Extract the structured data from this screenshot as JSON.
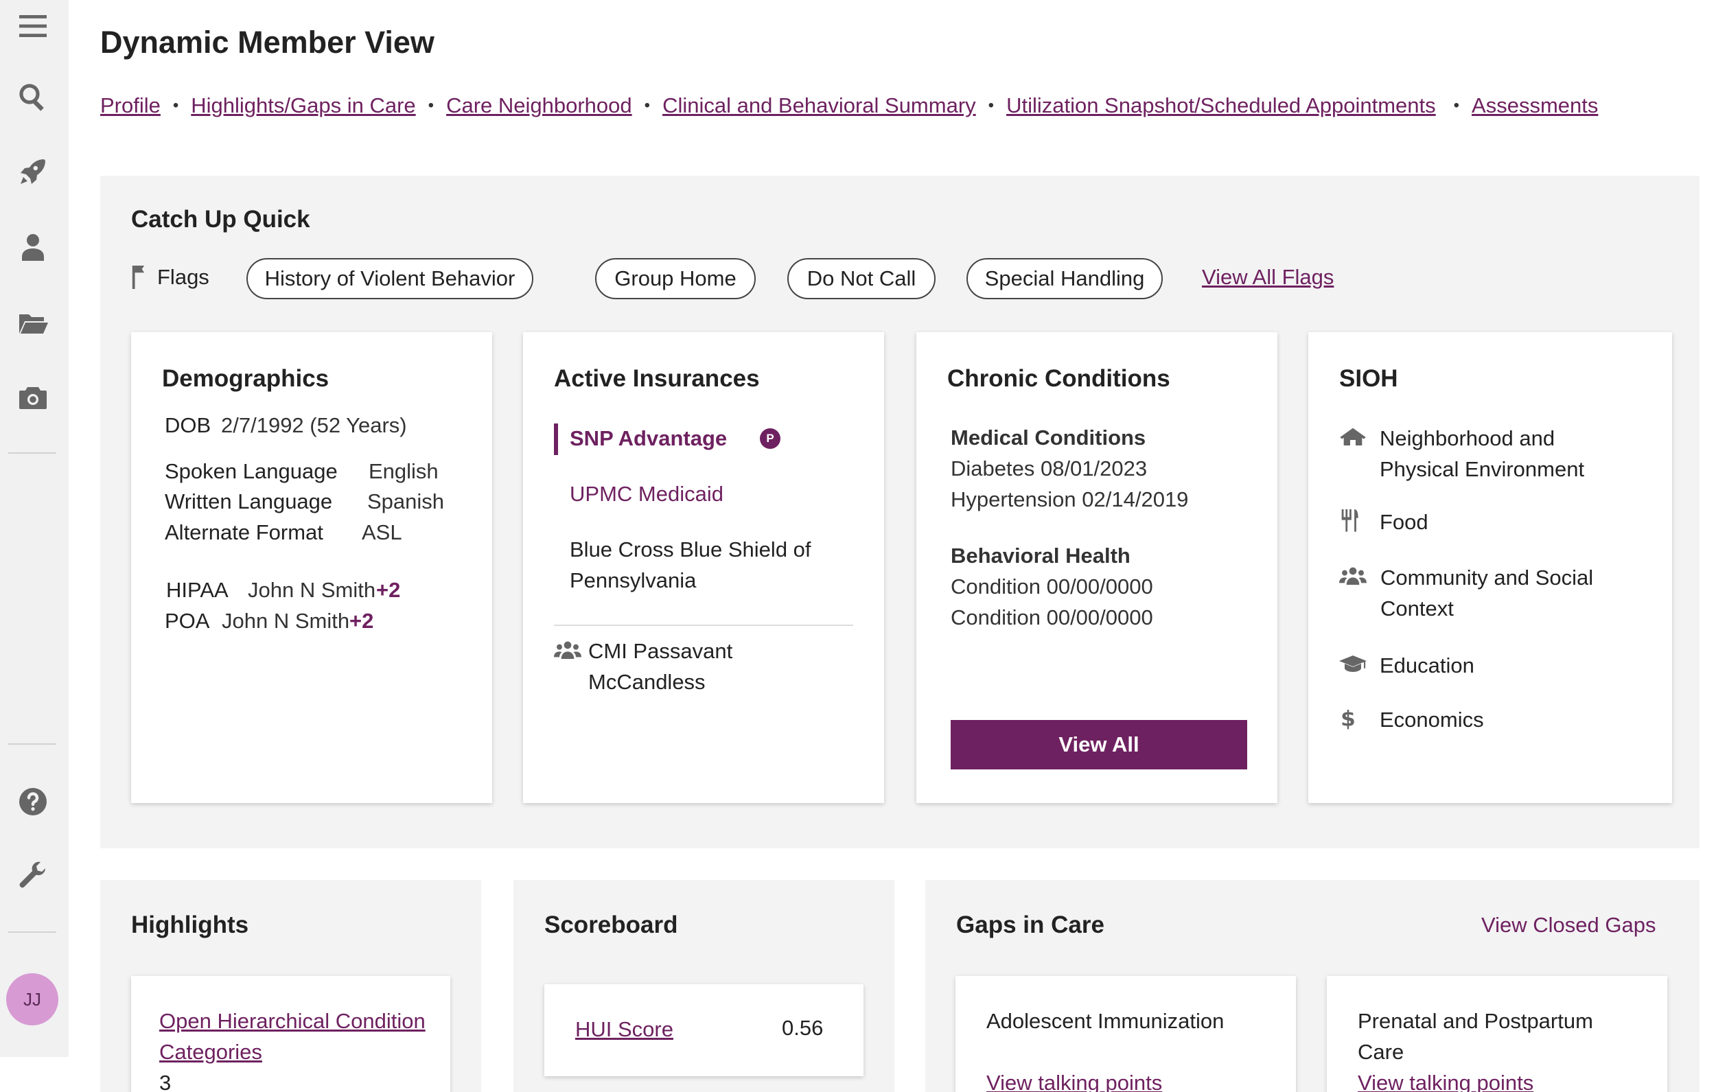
{
  "sidebar": {
    "avatar_initials": "JJ",
    "icons": [
      "menu-icon",
      "search-icon",
      "rocket-icon",
      "person-icon",
      "folder-icon",
      "camera-icon",
      "help-icon",
      "wrench-icon"
    ]
  },
  "header": {
    "title": "Dynamic Member View",
    "nav": [
      "Profile",
      "Highlights/Gaps in Care",
      "Care Neighborhood",
      "Clinical and Behavioral Summary",
      "Utilization Snapshot/Scheduled Appointments",
      "Assessments"
    ]
  },
  "catchup": {
    "title": "Catch Up Quick",
    "flags_label": "Flags",
    "flags": [
      "History of Violent Behavior",
      "Group Home",
      "Do Not Call",
      "Special Handling"
    ],
    "view_all_flags": "View All Flags"
  },
  "demographics": {
    "title": "Demographics",
    "dob_label": "DOB",
    "dob_value": "2/7/1992 (52 Years)",
    "spoken_label": "Spoken Language",
    "spoken_value": "English",
    "written_label": "Written Language",
    "written_value": "Spanish",
    "alt_label": "Alternate Format",
    "alt_value": "ASL",
    "hipaa_label": "HIPAA",
    "hipaa_value": "John N Smith",
    "hipaa_more": "+2",
    "poa_label": "POA",
    "poa_value": "John N Smith",
    "poa_more": "+2"
  },
  "insurances": {
    "title": "Active Insurances",
    "primary": "SNP Advantage",
    "primary_badge": "P",
    "secondary": "UPMC Medicaid",
    "third_line1": "Blue Cross Blue Shield of",
    "third_line2": "Pennsylvania",
    "group_line1": "CMI Passavant",
    "group_line2": "McCandless"
  },
  "chronic": {
    "title": "Chronic Conditions",
    "medical_heading": "Medical Conditions",
    "medical": [
      "Diabetes 08/01/2023",
      "Hypertension 02/14/2019"
    ],
    "behavioral_heading": "Behavioral Health",
    "behavioral": [
      "Condition 00/00/0000",
      "Condition 00/00/0000"
    ],
    "view_all": "View All"
  },
  "sioh": {
    "title": "SIOH",
    "items": [
      {
        "line1": "Neighborhood and",
        "line2": "Physical Environment",
        "icon": "house-icon"
      },
      {
        "line1": "Food",
        "line2": "",
        "icon": "utensils-icon"
      },
      {
        "line1": "Community and Social",
        "line2": "Context",
        "icon": "group-icon"
      },
      {
        "line1": "Education",
        "line2": "",
        "icon": "graduation-cap-icon"
      },
      {
        "line1": "Economics",
        "line2": "",
        "icon": "dollar-icon"
      }
    ]
  },
  "highlights": {
    "title": "Highlights",
    "item_line1": "Open Hierarchical Condition",
    "item_line2": "Categories",
    "item_value": "3"
  },
  "scoreboard": {
    "title": "Scoreboard",
    "hui_label": "HUI Score",
    "hui_value": "0.56"
  },
  "gaps": {
    "title": "Gaps in Care",
    "view_closed": "View Closed Gaps",
    "cards": [
      {
        "line1": "Adolescent Immunization",
        "line2": "",
        "link": "View talking points"
      },
      {
        "line1": "Prenatal and Postpartum",
        "line2": "Care",
        "link": "View talking points"
      }
    ]
  }
}
